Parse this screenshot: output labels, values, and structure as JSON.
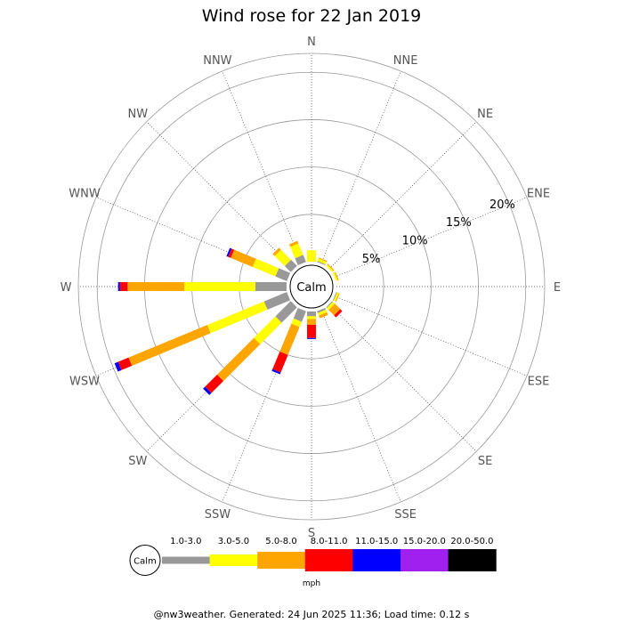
{
  "chart_data": {
    "type": "wind-rose",
    "title": "Wind rose for 22 Jan 2019",
    "calm_label": "Calm",
    "units": "mph",
    "footer": "@nw3weather. Generated: 24 Jun 2025 11:36; Load time: 0.12 s",
    "directions": [
      "N",
      "NNE",
      "NE",
      "ENE",
      "E",
      "ESE",
      "SE",
      "SSE",
      "S",
      "SSW",
      "SW",
      "WSW",
      "W",
      "WNW",
      "NW",
      "NNW"
    ],
    "radial_ticks": [
      5,
      10,
      15,
      20
    ],
    "radial_labels": [
      "5%",
      "10%",
      "15%",
      "20%"
    ],
    "radial_max": 22,
    "speed_bins": [
      {
        "label": "1.0-3.0",
        "color": "#999999"
      },
      {
        "label": "3.0-5.0",
        "color": "#ffff00"
      },
      {
        "label": "5.0-8.0",
        "color": "#ffa500"
      },
      {
        "label": "8.0-11.0",
        "color": "#ff0000"
      },
      {
        "label": "11.0-15.0",
        "color": "#0000ff"
      },
      {
        "label": "15.0-20.0",
        "color": "#a020f0"
      },
      {
        "label": "20.0-50.0",
        "color": "#000000"
      }
    ],
    "series_by_direction": [
      {
        "direction": "N",
        "values": [
          0.0,
          1.2,
          0.0,
          0.0,
          0.0,
          0.0,
          0.0
        ]
      },
      {
        "direction": "NNE",
        "values": [
          0.1,
          0.3,
          0.1,
          0.0,
          0.0,
          0.0,
          0.0
        ]
      },
      {
        "direction": "NE",
        "values": [
          0.0,
          0.2,
          0.1,
          0.0,
          0.0,
          0.0,
          0.0
        ]
      },
      {
        "direction": "ENE",
        "values": [
          0.0,
          0.2,
          0.1,
          0.0,
          0.0,
          0.0,
          0.0
        ]
      },
      {
        "direction": "E",
        "values": [
          0.0,
          0.0,
          0.0,
          0.0,
          0.0,
          0.0,
          0.0
        ]
      },
      {
        "direction": "ESE",
        "values": [
          0.1,
          0.2,
          0.1,
          0.0,
          0.0,
          0.0,
          0.0
        ]
      },
      {
        "direction": "SE",
        "values": [
          0.1,
          0.3,
          0.8,
          0.3,
          0.0,
          0.0,
          0.0
        ]
      },
      {
        "direction": "SSE",
        "values": [
          0.2,
          0.3,
          0.3,
          0.0,
          0.0,
          0.0,
          0.0
        ]
      },
      {
        "direction": "S",
        "values": [
          0.5,
          0.3,
          0.6,
          1.4,
          0.1,
          0.0,
          0.0
        ]
      },
      {
        "direction": "SSW",
        "values": [
          1.2,
          0.6,
          3.2,
          2.0,
          0.2,
          0.0,
          0.0
        ]
      },
      {
        "direction": "SW",
        "values": [
          2.3,
          3.2,
          5.5,
          1.8,
          0.3,
          0.0,
          0.0
        ]
      },
      {
        "direction": "WSW",
        "values": [
          2.6,
          6.5,
          9.0,
          1.2,
          0.4,
          0.0,
          0.0
        ]
      },
      {
        "direction": "W",
        "values": [
          3.3,
          7.5,
          6.0,
          0.8,
          0.2,
          0.0,
          0.0
        ]
      },
      {
        "direction": "WNW",
        "values": [
          1.3,
          2.6,
          2.5,
          0.3,
          0.2,
          0.0,
          0.0
        ]
      },
      {
        "direction": "NW",
        "values": [
          0.9,
          1.5,
          0.3,
          0.0,
          0.0,
          0.0,
          0.0
        ]
      },
      {
        "direction": "NNW",
        "values": [
          0.8,
          1.3,
          0.3,
          0.0,
          0.0,
          0.0,
          0.0
        ]
      }
    ]
  }
}
